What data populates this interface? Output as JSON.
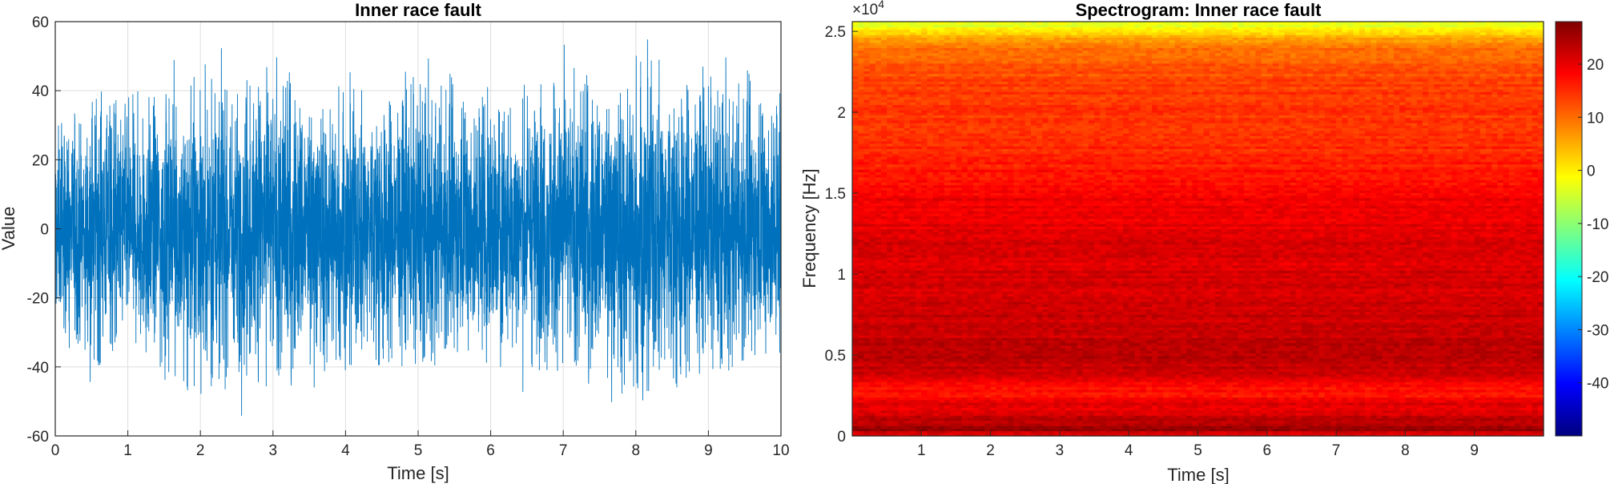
{
  "chart_data": [
    {
      "type": "line",
      "title": "Inner race fault",
      "xlabel": "Time [s]",
      "ylabel": "Value",
      "xlim": [
        0,
        10
      ],
      "ylim": [
        -60,
        60
      ],
      "xticks": [
        0,
        1,
        2,
        3,
        4,
        5,
        6,
        7,
        8,
        9,
        10
      ],
      "yticks": [
        -60,
        -40,
        -20,
        0,
        20,
        40,
        60
      ],
      "grid": true,
      "line_color": "#0072BD",
      "envelope": {
        "t": [
          0,
          0.5,
          1,
          1.5,
          2,
          2.5,
          3,
          3.5,
          4,
          4.5,
          5,
          5.5,
          6,
          6.5,
          7,
          7.5,
          8,
          8.5,
          9,
          9.5,
          10
        ],
        "max": [
          31,
          37,
          36,
          41,
          43,
          45,
          48,
          46,
          42,
          41,
          43,
          40,
          41,
          42,
          45,
          47,
          52,
          50,
          42,
          38,
          42
        ],
        "min": [
          -33,
          -40,
          -41,
          -44,
          -49,
          -43,
          -47,
          -42,
          -41,
          -40,
          -40,
          -41,
          -40,
          -44,
          -42,
          -45,
          -50,
          -46,
          -41,
          -45,
          -41
        ]
      }
    },
    {
      "type": "heatmap",
      "title": "Spectrogram: Inner race fault",
      "xlabel": "Time [s]",
      "ylabel": "Frequency [Hz]",
      "xlim": [
        0,
        10
      ],
      "ylim": [
        0,
        25600
      ],
      "xticks": [
        1,
        2,
        3,
        4,
        5,
        6,
        7,
        8,
        9
      ],
      "yticks": [
        0,
        5000,
        10000,
        15000,
        20000,
        25000
      ],
      "ytick_labels": [
        "0",
        "0.5",
        "1",
        "1.5",
        "2",
        "2.5"
      ],
      "y_exponent_label": "×10",
      "y_exponent_power": "4",
      "colormap": "jet",
      "clim": [
        -50,
        28
      ],
      "colorbar_ticks": [
        -40,
        -30,
        -20,
        -10,
        0,
        10,
        20
      ],
      "colorbar_tick_labels": [
        "-40",
        "-30",
        "-20",
        "-10",
        "0",
        "10",
        "20"
      ],
      "power_db_profile": {
        "freq_hz": [
          0,
          400,
          800,
          1200,
          1600,
          2000,
          2500,
          3000,
          4000,
          5000,
          6000,
          7000,
          8000,
          9000,
          10000,
          11000,
          12000,
          13000,
          14000,
          15000,
          16000,
          17000,
          18000,
          19000,
          20000,
          21000,
          22000,
          23000,
          24000,
          24600,
          25000,
          25600
        ],
        "db": [
          18,
          26,
          24,
          22,
          19,
          20,
          17,
          18,
          22,
          24,
          23,
          22,
          22,
          21,
          21,
          21,
          22,
          20,
          19,
          19,
          17,
          16,
          15,
          14,
          14,
          14,
          13,
          12,
          10,
          5,
          0,
          -4
        ]
      }
    }
  ]
}
